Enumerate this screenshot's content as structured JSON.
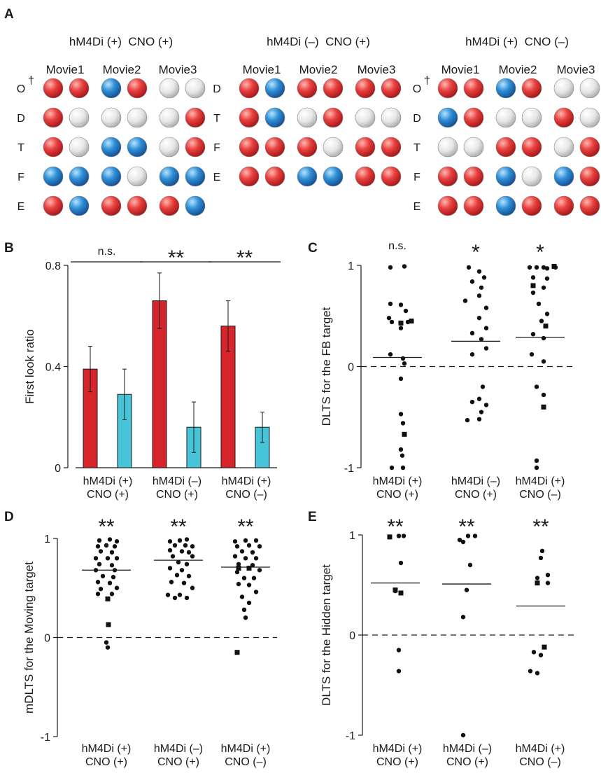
{
  "colors": {
    "red_bar": "#d7262b",
    "cyan_bar": "#47c4d8",
    "red_ball": "#e43b3d",
    "blue_ball": "#2f8fd6",
    "gray_ball": "#e3e3e3",
    "text": "#1a1a1a"
  },
  "panels": {
    "A": "A",
    "B": "B",
    "C": "C",
    "D": "D",
    "E": "E"
  },
  "panel_a": {
    "movies": [
      "Movie1",
      "Movie2",
      "Movie3"
    ],
    "groups": [
      {
        "title": "hM4Di (+)  CNO (+)",
        "rows": [
          {
            "label": "O",
            "dagger": "†",
            "cells": [
              "r",
              "r",
              "b",
              "r",
              "g",
              "g"
            ]
          },
          {
            "label": "D",
            "dagger": "",
            "cells": [
              "r",
              "g",
              "g",
              "g",
              "g",
              "r"
            ]
          },
          {
            "label": "T",
            "dagger": "",
            "cells": [
              "r",
              "g",
              "b",
              "b",
              "g",
              "r"
            ]
          },
          {
            "label": "F",
            "dagger": "",
            "cells": [
              "b",
              "b",
              "b",
              "g",
              "b",
              "b"
            ]
          },
          {
            "label": "E",
            "dagger": "",
            "cells": [
              "r",
              "b",
              "r",
              "r",
              "r",
              "b"
            ]
          }
        ]
      },
      {
        "title": "hM4Di (–)  CNO (+)",
        "rows": [
          {
            "label": "D",
            "dagger": "",
            "cells": [
              "r",
              "b",
              "r",
              "r",
              "r",
              "r"
            ]
          },
          {
            "label": "T",
            "dagger": "",
            "cells": [
              "r",
              "b",
              "g",
              "r",
              "g",
              "g"
            ]
          },
          {
            "label": "F",
            "dagger": "",
            "cells": [
              "r",
              "r",
              "r",
              "g",
              "r",
              "r"
            ]
          },
          {
            "label": "E",
            "dagger": "",
            "cells": [
              "r",
              "r",
              "b",
              "b",
              "r",
              "r"
            ]
          }
        ]
      },
      {
        "title": "hM4Di (+)  CNO (–)",
        "rows": [
          {
            "label": "O",
            "dagger": "†",
            "cells": [
              "r",
              "r",
              "b",
              "r",
              "g",
              "g"
            ]
          },
          {
            "label": "D",
            "dagger": "",
            "cells": [
              "b",
              "r",
              "g",
              "g",
              "r",
              "g"
            ]
          },
          {
            "label": "T",
            "dagger": "",
            "cells": [
              "g",
              "g",
              "r",
              "r",
              "g",
              "r"
            ]
          },
          {
            "label": "F",
            "dagger": "",
            "cells": [
              "r",
              "r",
              "b",
              "g",
              "b",
              "r"
            ]
          },
          {
            "label": "E",
            "dagger": "",
            "cells": [
              "r",
              "r",
              "b",
              "r",
              "r",
              "r"
            ]
          }
        ]
      }
    ]
  },
  "chart_data": [
    {
      "panel": "B",
      "type": "bar",
      "ylabel": "First look ratio",
      "ylim": [
        0,
        0.8
      ],
      "yticks": [
        "0",
        "0.4",
        "0.8"
      ],
      "ytick_values": [
        0,
        0.4,
        0.8
      ],
      "categories": [
        [
          "hM4Di (+)",
          "CNO (+)"
        ],
        [
          "hM4Di (–)",
          "CNO (+)"
        ],
        [
          "hM4Di (+)",
          "CNO (–)"
        ]
      ],
      "series": [
        {
          "color": "#d7262b",
          "values": [
            0.39,
            0.66,
            0.56
          ],
          "errors": [
            0.09,
            0.11,
            0.1
          ]
        },
        {
          "color": "#47c4d8",
          "values": [
            0.29,
            0.16,
            0.16
          ],
          "errors": [
            0.1,
            0.1,
            0.06
          ]
        }
      ],
      "significance": [
        "n.s.",
        "**",
        "**"
      ]
    },
    {
      "panel": "C",
      "type": "scatter",
      "ylabel": "DLTS for the FB target",
      "ylim": [
        -1,
        1
      ],
      "yticks": [
        "-1",
        "0",
        "1"
      ],
      "ytick_values": [
        -1,
        0,
        1
      ],
      "categories": [
        [
          "hM4Di (+)",
          "CNO (+)"
        ],
        [
          "hM4Di (–)",
          "CNO (+)"
        ],
        [
          "hM4Di (+)",
          "CNO (–)"
        ]
      ],
      "significance": [
        "n.s.",
        "*",
        "*"
      ],
      "means": [
        0.09,
        0.25,
        0.29
      ],
      "groups": [
        {
          "circles": [
            [
              -0.1,
              0.98
            ],
            [
              0.1,
              0.99
            ],
            [
              -0.1,
              0.62
            ],
            [
              0.05,
              0.61
            ],
            [
              0.12,
              0.55
            ],
            [
              -0.12,
              0.48
            ],
            [
              -0.08,
              0.44
            ],
            [
              0.15,
              0.44
            ],
            [
              0.05,
              0.38
            ],
            [
              -0.1,
              0.12
            ],
            [
              0.08,
              0.08
            ],
            [
              0.1,
              0.03
            ],
            [
              0.05,
              -0.12
            ],
            [
              0.05,
              -0.47
            ],
            [
              0.08,
              -0.56
            ],
            [
              0.05,
              -0.82
            ],
            [
              0.07,
              -0.88
            ],
            [
              -0.08,
              -1.0
            ],
            [
              0.08,
              -1.0
            ]
          ],
          "squares": [
            [
              0.05,
              0.43
            ],
            [
              0.2,
              0.45
            ],
            [
              0.1,
              -0.67
            ]
          ]
        },
        {
          "circles": [
            [
              -0.1,
              0.98
            ],
            [
              0.05,
              0.94
            ],
            [
              0.12,
              0.88
            ],
            [
              -0.05,
              0.84
            ],
            [
              0.08,
              0.78
            ],
            [
              0.05,
              0.7
            ],
            [
              -0.15,
              0.65
            ],
            [
              0.15,
              0.58
            ],
            [
              0.05,
              0.48
            ],
            [
              0.15,
              0.38
            ],
            [
              -0.05,
              0.33
            ],
            [
              0.08,
              0.27
            ],
            [
              0.15,
              0.18
            ],
            [
              -0.05,
              0.12
            ],
            [
              0.1,
              -0.2
            ],
            [
              0.05,
              -0.32
            ],
            [
              -0.05,
              -0.35
            ],
            [
              0.15,
              -0.38
            ],
            [
              0.08,
              -0.45
            ],
            [
              -0.12,
              -0.53
            ],
            [
              0.05,
              -0.52
            ]
          ],
          "squares": []
        },
        {
          "circles": [
            [
              -0.15,
              0.98
            ],
            [
              -0.05,
              0.98
            ],
            [
              0.05,
              0.98
            ],
            [
              0.1,
              0.97
            ],
            [
              0.22,
              0.98
            ],
            [
              -0.1,
              0.88
            ],
            [
              0.1,
              0.87
            ],
            [
              0.05,
              0.78
            ],
            [
              -0.1,
              0.73
            ],
            [
              -0.02,
              0.62
            ],
            [
              0.1,
              0.52
            ],
            [
              0.02,
              0.45
            ],
            [
              -0.1,
              0.32
            ],
            [
              0.05,
              0.28
            ],
            [
              -0.12,
              0.12
            ],
            [
              0.05,
              0.05
            ],
            [
              -0.05,
              -0.2
            ],
            [
              0.05,
              -0.28
            ],
            [
              -0.05,
              -0.93
            ],
            [
              -0.05,
              -1.0
            ]
          ],
          "squares": [
            [
              0.2,
              0.99
            ],
            [
              -0.1,
              0.8
            ],
            [
              0.08,
              0.4
            ],
            [
              0.05,
              -0.4
            ]
          ]
        }
      ]
    },
    {
      "panel": "D",
      "type": "scatter",
      "ylabel": "mDLTS for the Moving target",
      "ylim": [
        -1,
        1
      ],
      "yticks": [
        "-1",
        "0",
        "1"
      ],
      "ytick_values": [
        -1,
        0,
        1
      ],
      "categories": [
        [
          "hM4Di (+)",
          "CNO (+)"
        ],
        [
          "hM4Di (–)",
          "CNO (+)"
        ],
        [
          "hM4Di (+)",
          "CNO (–)"
        ]
      ],
      "significance": [
        "**",
        "**",
        "**"
      ],
      "means": [
        0.68,
        0.78,
        0.71
      ],
      "groups": [
        {
          "circles": [
            [
              -0.1,
              0.98
            ],
            [
              0.05,
              0.99
            ],
            [
              0.15,
              0.97
            ],
            [
              -0.12,
              0.92
            ],
            [
              0.0,
              0.93
            ],
            [
              0.12,
              0.92
            ],
            [
              -0.08,
              0.87
            ],
            [
              0.08,
              0.86
            ],
            [
              -0.15,
              0.8
            ],
            [
              0.02,
              0.8
            ],
            [
              0.15,
              0.8
            ],
            [
              -0.1,
              0.74
            ],
            [
              0.08,
              0.73
            ],
            [
              -0.15,
              0.68
            ],
            [
              0.12,
              0.68
            ],
            [
              -0.05,
              0.62
            ],
            [
              0.1,
              0.61
            ],
            [
              -0.12,
              0.56
            ],
            [
              0.05,
              0.55
            ],
            [
              0.15,
              0.5
            ],
            [
              -0.08,
              0.49
            ],
            [
              0.08,
              0.44
            ],
            [
              -0.12,
              0.44
            ],
            [
              0.0,
              -0.05
            ],
            [
              0.02,
              -0.1
            ]
          ],
          "squares": [
            [
              0.02,
              0.39
            ],
            [
              0.03,
              0.13
            ]
          ]
        },
        {
          "circles": [
            [
              -0.12,
              0.97
            ],
            [
              0.02,
              0.98
            ],
            [
              0.12,
              0.99
            ],
            [
              -0.05,
              0.93
            ],
            [
              0.1,
              0.93
            ],
            [
              0.2,
              0.92
            ],
            [
              -0.12,
              0.88
            ],
            [
              0.05,
              0.87
            ],
            [
              0.15,
              0.86
            ],
            [
              -0.08,
              0.82
            ],
            [
              0.2,
              0.82
            ],
            [
              0.0,
              0.76
            ],
            [
              0.12,
              0.74
            ],
            [
              -0.12,
              0.7
            ],
            [
              0.05,
              0.68
            ],
            [
              -0.02,
              0.63
            ],
            [
              0.15,
              0.62
            ],
            [
              -0.1,
              0.56
            ],
            [
              0.08,
              0.55
            ],
            [
              0.2,
              0.5
            ],
            [
              -0.15,
              0.43
            ],
            [
              0.02,
              0.43
            ],
            [
              -0.05,
              0.4
            ],
            [
              0.12,
              0.4
            ]
          ],
          "squares": []
        },
        {
          "circles": [
            [
              -0.15,
              0.97
            ],
            [
              0.0,
              0.98
            ],
            [
              0.15,
              0.98
            ],
            [
              -0.12,
              0.92
            ],
            [
              0.05,
              0.93
            ],
            [
              0.2,
              0.92
            ],
            [
              -0.05,
              0.87
            ],
            [
              0.1,
              0.86
            ],
            [
              -0.15,
              0.82
            ],
            [
              0.0,
              0.8
            ],
            [
              0.15,
              0.8
            ],
            [
              -0.1,
              0.74
            ],
            [
              0.1,
              0.73
            ],
            [
              0.2,
              0.68
            ],
            [
              -0.12,
              0.66
            ],
            [
              -0.02,
              0.6
            ],
            [
              0.12,
              0.6
            ],
            [
              -0.1,
              0.54
            ],
            [
              0.05,
              0.53
            ],
            [
              0.15,
              0.46
            ],
            [
              -0.05,
              0.41
            ],
            [
              0.05,
              0.35
            ],
            [
              -0.02,
              0.28
            ],
            [
              0.0,
              0.2
            ]
          ],
          "squares": [
            [
              -0.1,
              0.7
            ],
            [
              0.05,
              0.7
            ],
            [
              -0.12,
              -0.15
            ]
          ]
        }
      ]
    },
    {
      "panel": "E",
      "type": "scatter",
      "ylabel": "DLTS for the Hidden target",
      "ylim": [
        -1,
        1
      ],
      "yticks": [
        "-1",
        "0",
        "1"
      ],
      "ytick_values": [
        -1,
        0,
        1
      ],
      "categories": [
        [
          "hM4Di (+)",
          "CNO (+)"
        ],
        [
          "hM4Di (–)",
          "CNO (+)"
        ],
        [
          "hM4Di (+)",
          "CNO (–)"
        ]
      ],
      "significance": [
        "**",
        "**",
        "**"
      ],
      "means": [
        0.52,
        0.51,
        0.29
      ],
      "groups": [
        {
          "circles": [
            [
              0.05,
              0.99
            ],
            [
              0.12,
              0.99
            ],
            [
              0.08,
              0.72
            ],
            [
              0.0,
              0.44
            ],
            [
              0.05,
              -0.15
            ],
            [
              0.05,
              -0.36
            ]
          ],
          "squares": [
            [
              -0.08,
              0.98
            ],
            [
              0.0,
              0.45
            ],
            [
              0.08,
              0.42
            ]
          ]
        },
        {
          "circles": [
            [
              -0.1,
              0.95
            ],
            [
              0.02,
              0.99
            ],
            [
              0.12,
              0.99
            ],
            [
              -0.05,
              0.93
            ],
            [
              0.05,
              0.7
            ],
            [
              0.0,
              0.45
            ],
            [
              -0.05,
              0.18
            ],
            [
              -0.05,
              -1.0
            ]
          ],
          "squares": []
        },
        {
          "circles": [
            [
              0.02,
              0.84
            ],
            [
              0.0,
              0.77
            ],
            [
              -0.05,
              0.57
            ],
            [
              0.1,
              0.6
            ],
            [
              0.1,
              0.52
            ],
            [
              -0.1,
              -0.17
            ],
            [
              -0.15,
              -0.36
            ],
            [
              -0.05,
              -0.38
            ],
            [
              0.0,
              -0.2
            ]
          ],
          "squares": [
            [
              -0.05,
              0.52
            ],
            [
              0.05,
              -0.12
            ]
          ]
        }
      ]
    }
  ]
}
